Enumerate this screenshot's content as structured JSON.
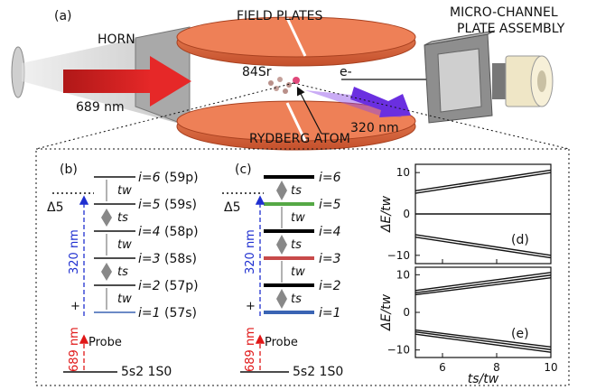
{
  "apparatus": {
    "panel_label": "(a)",
    "horn_label": "HORN",
    "field_plates_label": "FIELD PLATES",
    "mcp_label_line1": "MICRO-CHANNEL",
    "mcp_label_line2": "PLATE ASSEMBLY",
    "laser_689_label": "689 nm",
    "laser_320_label": "320 nm",
    "strontium_label": "84Sr",
    "electron_label": "e-",
    "rydberg_label": "RYDBERG ATOM"
  },
  "level_diagram_b": {
    "panel_label": "(b)",
    "levels": [
      {
        "i": "i=6",
        "state": "(59p)",
        "color": "#111111"
      },
      {
        "i": "i=5",
        "state": "(59s)",
        "color": "#111111"
      },
      {
        "i": "i=4",
        "state": "(58p)",
        "color": "#111111"
      },
      {
        "i": "i=3",
        "state": "(58s)",
        "color": "#111111"
      },
      {
        "i": "i=2",
        "state": "(57p)",
        "color": "#111111"
      },
      {
        "i": "i=1",
        "state": "(57s)",
        "color": "#111111"
      }
    ],
    "couplings": [
      "tw",
      "ts",
      "tw",
      "ts",
      "tw"
    ],
    "detuning_label": "Δ5",
    "uv_label": "320 nm",
    "plus_label": "+",
    "red_label": "689 nm",
    "probe_label": "Probe",
    "ground_label": "5s2 1S0"
  },
  "level_diagram_c": {
    "panel_label": "(c)",
    "levels": [
      {
        "i": "i=6",
        "color": "#000000"
      },
      {
        "i": "i=5",
        "color": "#55a845"
      },
      {
        "i": "i=4",
        "color": "#000000"
      },
      {
        "i": "i=3",
        "color": "#c84a4a"
      },
      {
        "i": "i=2",
        "color": "#000000"
      },
      {
        "i": "i=1",
        "color": "#3a64b4"
      }
    ],
    "couplings": [
      "ts",
      "tw",
      "ts",
      "tw",
      "ts"
    ],
    "detuning_label": "Δ5",
    "uv_label": "320 nm",
    "plus_label": "+",
    "red_label": "689 nm",
    "probe_label": "Probe",
    "ground_label": "5s2 1S0"
  },
  "chart_data": [
    {
      "type": "line",
      "panel_label": "(d)",
      "xlim": [
        5,
        10
      ],
      "ylim": [
        -12,
        12
      ],
      "ylabel": "ΔE/tw",
      "yticks": [
        "10",
        "0",
        "−10"
      ],
      "series": [
        {
          "x": [
            5,
            10
          ],
          "y": [
            5.0,
            10.0
          ]
        },
        {
          "x": [
            5,
            10
          ],
          "y": [
            5.6,
            10.6
          ]
        },
        {
          "x": [
            5,
            10
          ],
          "y": [
            0,
            0
          ]
        },
        {
          "x": [
            5,
            10
          ],
          "y": [
            -5.0,
            -10.0
          ]
        },
        {
          "x": [
            5,
            10
          ],
          "y": [
            -5.6,
            -10.6
          ]
        }
      ]
    },
    {
      "type": "line",
      "panel_label": "(e)",
      "xlim": [
        5,
        10
      ],
      "ylim": [
        -12,
        12
      ],
      "xlabel": "ts/tw",
      "ylabel": "ΔE/tw",
      "xticks": [
        "6",
        "8",
        "10"
      ],
      "yticks": [
        "10",
        "0",
        "−10"
      ],
      "series": [
        {
          "x": [
            5,
            10
          ],
          "y": [
            4.7,
            9.2
          ]
        },
        {
          "x": [
            5,
            10
          ],
          "y": [
            5.2,
            9.9
          ]
        },
        {
          "x": [
            5,
            10
          ],
          "y": [
            5.8,
            10.6
          ]
        },
        {
          "x": [
            5,
            10
          ],
          "y": [
            -4.7,
            -9.2
          ]
        },
        {
          "x": [
            5,
            10
          ],
          "y": [
            -5.2,
            -9.9
          ]
        },
        {
          "x": [
            5,
            10
          ],
          "y": [
            -5.8,
            -10.6
          ]
        }
      ]
    }
  ]
}
